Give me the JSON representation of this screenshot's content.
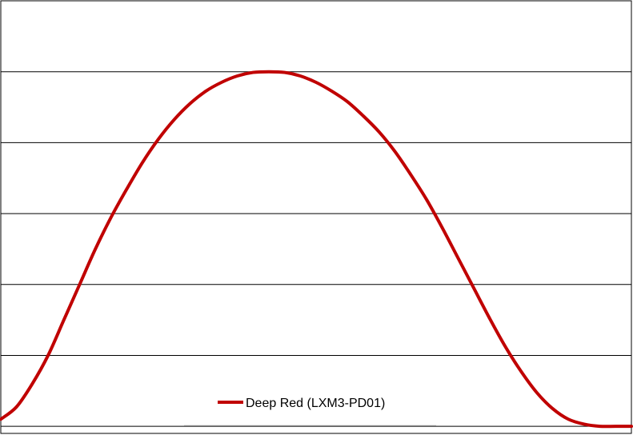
{
  "chart_data": {
    "type": "line",
    "title": "",
    "xlabel": "",
    "ylabel": "",
    "grid": true,
    "legend_placement": "bottom-center",
    "xlim": [
      0,
      100
    ],
    "ylim": [
      -0.02,
      1.2
    ],
    "series": [
      {
        "name": "Deep Red (LXM3-PD01)",
        "color": "#c00000",
        "x": [
          0,
          2.5,
          5,
          7.5,
          10,
          12.5,
          15,
          17.5,
          20,
          22.5,
          25,
          27.5,
          30,
          32.5,
          35,
          37.5,
          40,
          42.5,
          45,
          47.5,
          50,
          52.5,
          55,
          57.5,
          60,
          62.5,
          65,
          67.5,
          70,
          72.5,
          75,
          77.5,
          80,
          82.5,
          85,
          87.5,
          90,
          92.5,
          95,
          97.5,
          100
        ],
        "y": [
          0.02,
          0.055,
          0.12,
          0.2,
          0.3,
          0.4,
          0.5,
          0.59,
          0.67,
          0.745,
          0.81,
          0.865,
          0.91,
          0.945,
          0.97,
          0.988,
          0.998,
          1.0,
          0.998,
          0.988,
          0.97,
          0.945,
          0.915,
          0.875,
          0.83,
          0.775,
          0.71,
          0.64,
          0.56,
          0.475,
          0.39,
          0.305,
          0.225,
          0.155,
          0.095,
          0.05,
          0.02,
          0.006,
          0.0,
          0.0,
          0.0
        ]
      }
    ]
  }
}
